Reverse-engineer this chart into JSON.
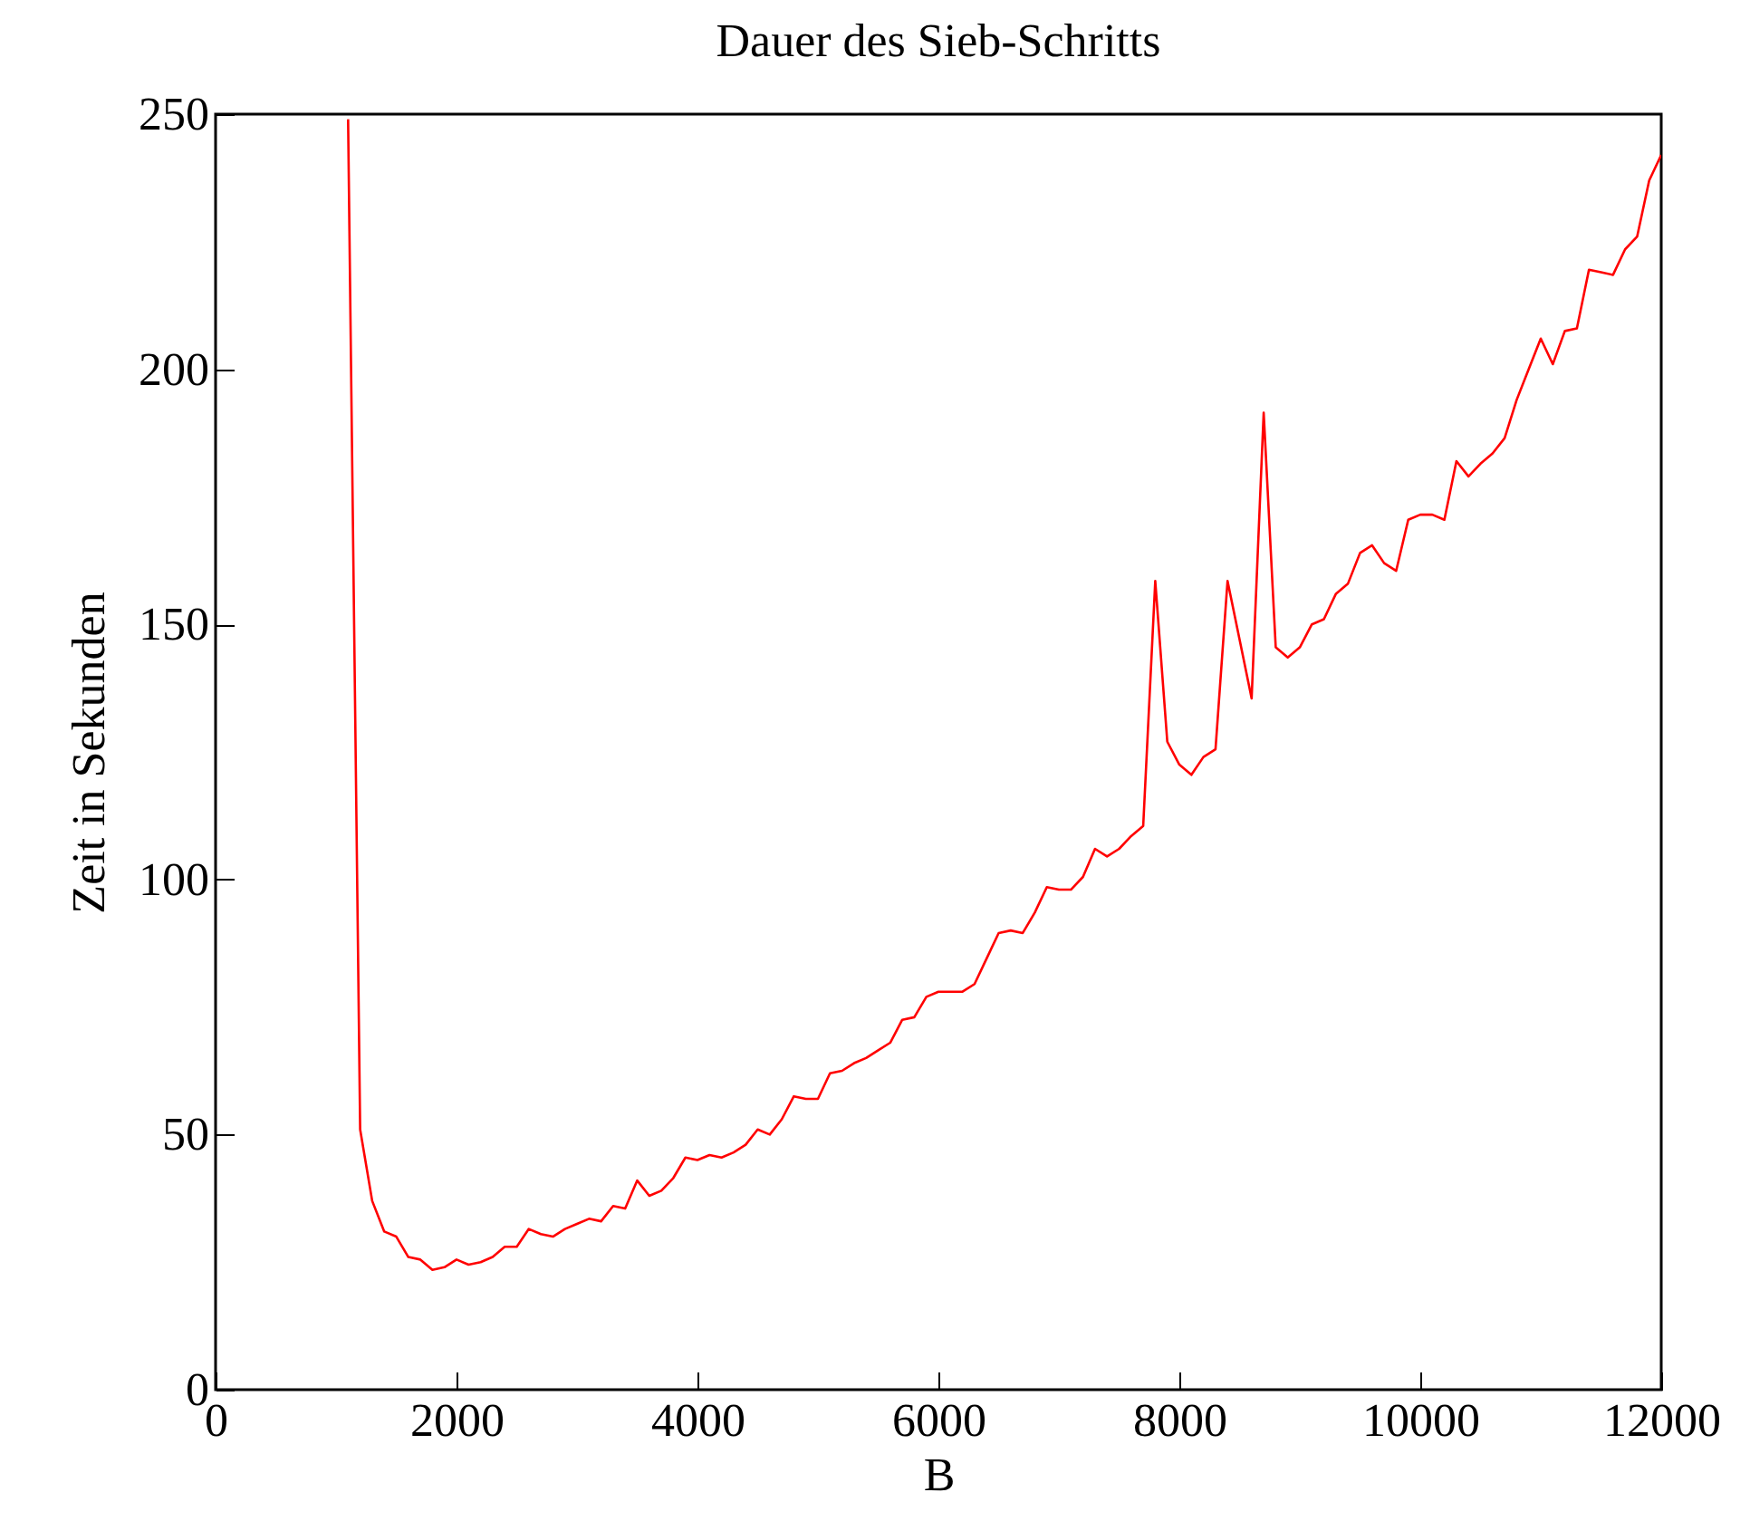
{
  "chart_data": {
    "type": "line",
    "title": "Dauer des Sieb-Schritts",
    "xlabel": "B",
    "ylabel": "Zeit in Sekunden",
    "x": [
      1100,
      1200,
      1300,
      1400,
      1500,
      1600,
      1700,
      1800,
      1900,
      2000,
      2100,
      2200,
      2300,
      2400,
      2500,
      2600,
      2700,
      2800,
      2900,
      3000,
      3100,
      3200,
      3300,
      3400,
      3500,
      3600,
      3700,
      3800,
      3900,
      4000,
      4100,
      4200,
      4300,
      4400,
      4500,
      4600,
      4700,
      4800,
      4900,
      5000,
      5100,
      5200,
      5300,
      5400,
      5500,
      5600,
      5700,
      5800,
      5900,
      6000,
      6100,
      6200,
      6300,
      6400,
      6500,
      6600,
      6700,
      6800,
      6900,
      7000,
      7100,
      7200,
      7300,
      7400,
      7500,
      7600,
      7700,
      7800,
      7900,
      8000,
      8100,
      8200,
      8300,
      8400,
      8500,
      8600,
      8700,
      8800,
      8900,
      9000,
      9100,
      9200,
      9300,
      9400,
      9500,
      9600,
      9700,
      9800,
      9900,
      10000,
      10100,
      10200,
      10300,
      10400,
      10500,
      10600,
      10700,
      10800,
      10900,
      11000,
      11100,
      11200,
      11300,
      11400,
      11500,
      11600,
      11700,
      11800,
      11900,
      12000
    ],
    "series": [
      {
        "color": "#ff0000",
        "values": [
          249,
          51,
          37,
          31,
          30,
          26,
          25.5,
          23.5,
          24,
          25.5,
          24.5,
          25,
          26,
          28,
          28,
          31.5,
          30.5,
          30,
          31.5,
          32.5,
          33.5,
          33,
          36,
          35.5,
          41,
          38,
          39,
          41.5,
          45.5,
          45,
          46,
          45.5,
          46.5,
          48,
          51,
          50,
          53,
          57.5,
          57,
          57,
          62,
          62.5,
          64,
          65,
          66.5,
          68,
          72.5,
          73,
          77,
          78,
          78,
          78,
          79.5,
          84.5,
          89.5,
          90,
          89.5,
          93.5,
          98.5,
          98,
          98,
          100.5,
          106,
          104.5,
          106,
          108.5,
          110.5,
          158.5,
          127,
          122.5,
          120.5,
          124,
          125.5,
          158.5,
          147,
          135.5,
          191.5,
          145.5,
          143.5,
          145.5,
          150,
          151,
          156,
          158,
          164,
          165.5,
          162,
          160.5,
          170.5,
          171.5,
          171.5,
          170.5,
          182,
          179,
          181.5,
          183.5,
          186.5,
          194,
          200,
          206,
          201,
          207.5,
          208,
          219.5,
          219,
          218.5,
          223.5,
          226,
          237,
          242
        ]
      }
    ],
    "xlim": [
      0,
      12000
    ],
    "xticks": [
      0,
      2000,
      4000,
      6000,
      8000,
      10000,
      12000
    ],
    "ylim": [
      0,
      250
    ],
    "yticks": [
      0,
      50,
      100,
      150,
      200,
      250
    ],
    "grid": false,
    "legend": false,
    "line_style": "solid",
    "marker": "none"
  }
}
